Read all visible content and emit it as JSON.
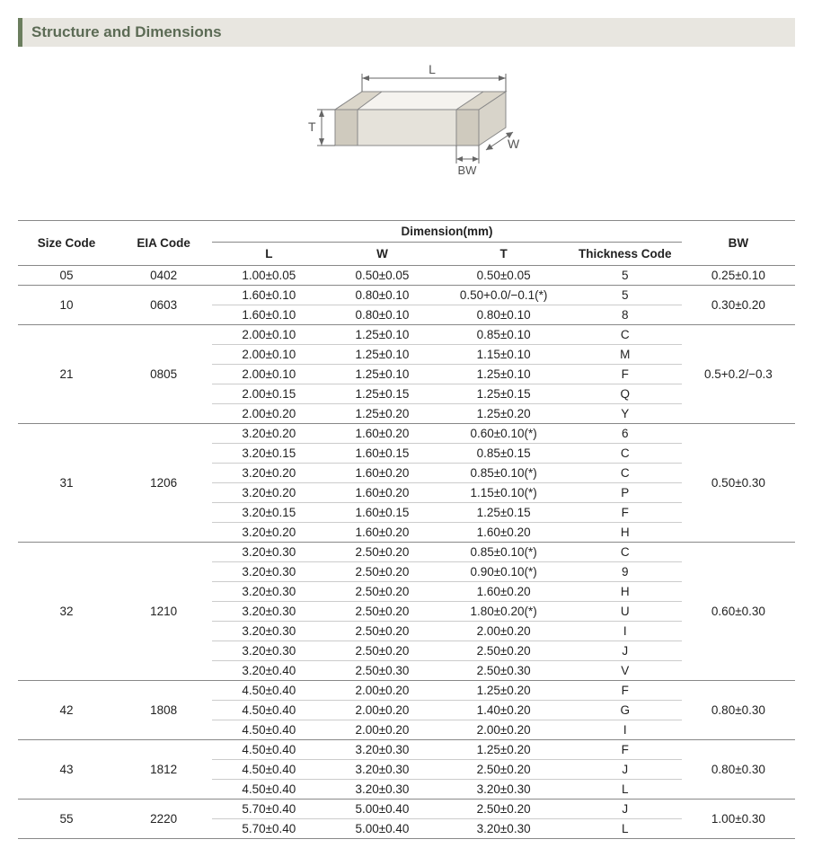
{
  "title": "Structure and Dimensions",
  "diagram": {
    "labels": {
      "L": "L",
      "W": "W",
      "T": "T",
      "BW": "BW"
    },
    "colors": {
      "fill_top": "#f5f3ef",
      "fill_front": "#e5e2da",
      "fill_side": "#d8d4ca",
      "stroke": "#888888",
      "arrow": "#666666",
      "text": "#555555"
    }
  },
  "table": {
    "headers": {
      "size_code": "Size Code",
      "eia_code": "EIA Code",
      "dimension_group": "Dimension(mm)",
      "L": "L",
      "W": "W",
      "T": "T",
      "thick": "Thickness  Code",
      "BW": "BW"
    },
    "groups": [
      {
        "size": "05",
        "eia": "0402",
        "bw": "0.25±0.10",
        "rows": [
          {
            "L": "1.00±0.05",
            "W": "0.50±0.05",
            "T": "0.50±0.05",
            "code": "5"
          }
        ]
      },
      {
        "size": "10",
        "eia": "0603",
        "bw": "0.30±0.20",
        "rows": [
          {
            "L": "1.60±0.10",
            "W": "0.80±0.10",
            "T": "0.50+0.0/−0.1(*)",
            "code": "5"
          },
          {
            "L": "1.60±0.10",
            "W": "0.80±0.10",
            "T": "0.80±0.10",
            "code": "8"
          }
        ]
      },
      {
        "size": "21",
        "eia": "0805",
        "bw": "0.5+0.2/−0.3",
        "rows": [
          {
            "L": "2.00±0.10",
            "W": "1.25±0.10",
            "T": "0.85±0.10",
            "code": "C"
          },
          {
            "L": "2.00±0.10",
            "W": "1.25±0.10",
            "T": "1.15±0.10",
            "code": "M"
          },
          {
            "L": "2.00±0.10",
            "W": "1.25±0.10",
            "T": "1.25±0.10",
            "code": "F"
          },
          {
            "L": "2.00±0.15",
            "W": "1.25±0.15",
            "T": "1.25±0.15",
            "code": "Q"
          },
          {
            "L": "2.00±0.20",
            "W": "1.25±0.20",
            "T": "1.25±0.20",
            "code": "Y"
          }
        ]
      },
      {
        "size": "31",
        "eia": "1206",
        "bw": "0.50±0.30",
        "rows": [
          {
            "L": "3.20±0.20",
            "W": "1.60±0.20",
            "T": "0.60±0.10(*)",
            "code": "6"
          },
          {
            "L": "3.20±0.15",
            "W": "1.60±0.15",
            "T": "0.85±0.15",
            "code": "C"
          },
          {
            "L": "3.20±0.20",
            "W": "1.60±0.20",
            "T": "0.85±0.10(*)",
            "code": "C"
          },
          {
            "L": "3.20±0.20",
            "W": "1.60±0.20",
            "T": "1.15±0.10(*)",
            "code": "P"
          },
          {
            "L": "3.20±0.15",
            "W": "1.60±0.15",
            "T": "1.25±0.15",
            "code": "F"
          },
          {
            "L": "3.20±0.20",
            "W": "1.60±0.20",
            "T": "1.60±0.20",
            "code": "H"
          }
        ]
      },
      {
        "size": "32",
        "eia": "1210",
        "bw": "0.60±0.30",
        "rows": [
          {
            "L": "3.20±0.30",
            "W": "2.50±0.20",
            "T": "0.85±0.10(*)",
            "code": "C"
          },
          {
            "L": "3.20±0.30",
            "W": "2.50±0.20",
            "T": "0.90±0.10(*)",
            "code": "9"
          },
          {
            "L": "3.20±0.30",
            "W": "2.50±0.20",
            "T": "1.60±0.20",
            "code": "H"
          },
          {
            "L": "3.20±0.30",
            "W": "2.50±0.20",
            "T": "1.80±0.20(*)",
            "code": "U"
          },
          {
            "L": "3.20±0.30",
            "W": "2.50±0.20",
            "T": "2.00±0.20",
            "code": "I"
          },
          {
            "L": "3.20±0.30",
            "W": "2.50±0.20",
            "T": "2.50±0.20",
            "code": "J"
          },
          {
            "L": "3.20±0.40",
            "W": "2.50±0.30",
            "T": "2.50±0.30",
            "code": "V"
          }
        ]
      },
      {
        "size": "42",
        "eia": "1808",
        "bw": "0.80±0.30",
        "rows": [
          {
            "L": "4.50±0.40",
            "W": "2.00±0.20",
            "T": "1.25±0.20",
            "code": "F"
          },
          {
            "L": "4.50±0.40",
            "W": "2.00±0.20",
            "T": "1.40±0.20",
            "code": "G"
          },
          {
            "L": "4.50±0.40",
            "W": "2.00±0.20",
            "T": "2.00±0.20",
            "code": "I"
          }
        ]
      },
      {
        "size": "43",
        "eia": "1812",
        "bw": "0.80±0.30",
        "rows": [
          {
            "L": "4.50±0.40",
            "W": "3.20±0.30",
            "T": "1.25±0.20",
            "code": "F"
          },
          {
            "L": "4.50±0.40",
            "W": "3.20±0.30",
            "T": "2.50±0.20",
            "code": "J"
          },
          {
            "L": "4.50±0.40",
            "W": "3.20±0.30",
            "T": "3.20±0.30",
            "code": "L"
          }
        ]
      },
      {
        "size": "55",
        "eia": "2220",
        "bw": "1.00±0.30",
        "rows": [
          {
            "L": "5.70±0.40",
            "W": "5.00±0.40",
            "T": "2.50±0.20",
            "code": "J"
          },
          {
            "L": "5.70±0.40",
            "W": "5.00±0.40",
            "T": "3.20±0.30",
            "code": "L"
          }
        ]
      }
    ]
  }
}
